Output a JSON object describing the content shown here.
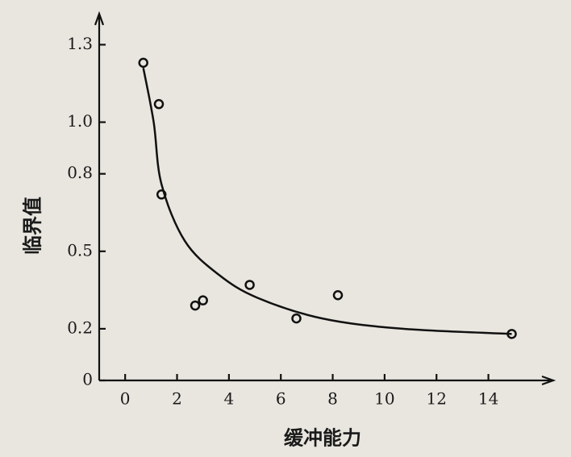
{
  "chart_data": {
    "type": "scatter",
    "x_label": "缓冲能力",
    "y_label": "临界值",
    "xlim": [
      -1,
      16.5
    ],
    "ylim": [
      0,
      1.42
    ],
    "xticks": [
      0,
      2,
      4,
      6,
      8,
      10,
      12,
      14
    ],
    "yticks": [
      0,
      0.2,
      0.5,
      0.8,
      {
        "value": 1,
        "label": "1.0"
      },
      1.3
    ],
    "color": "#111111",
    "series": [
      {
        "x": [
          0.7,
          1.3,
          1.4,
          2.7,
          3.0,
          4.8,
          6.6,
          8.2,
          14.9
        ],
        "values": [
          1.23,
          1.07,
          0.72,
          0.29,
          0.31,
          0.37,
          0.24,
          0.33,
          0.18
        ]
      },
      {
        "type": "line",
        "x": [
          0.7,
          1.1,
          1.4,
          2.3,
          3.6,
          5.1,
          7.6,
          10.7,
          14.9
        ],
        "values": [
          1.21,
          1.0,
          0.76,
          0.54,
          0.41,
          0.32,
          0.24,
          0.2,
          0.18
        ]
      }
    ]
  }
}
